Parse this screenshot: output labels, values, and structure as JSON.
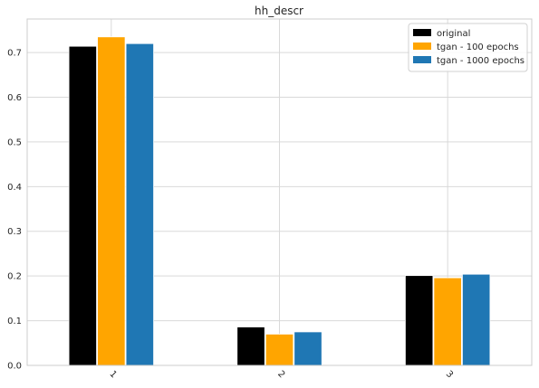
{
  "chart_data": {
    "type": "bar",
    "title": "hh_descr",
    "xlabel": "",
    "ylabel": "",
    "categories": [
      "1",
      "2",
      "3"
    ],
    "series": [
      {
        "name": "original",
        "values": [
          0.714,
          0.086,
          0.201
        ],
        "color": "#000000"
      },
      {
        "name": "tgan - 100 epochs",
        "values": [
          0.735,
          0.07,
          0.196
        ],
        "color": "#ffa500"
      },
      {
        "name": "tgan - 1000 epochs",
        "values": [
          0.72,
          0.075,
          0.204
        ],
        "color": "#1f77b4"
      }
    ],
    "ylim": [
      0,
      0.775
    ],
    "yticks": [
      0.0,
      0.1,
      0.2,
      0.3,
      0.4,
      0.5,
      0.6,
      0.7
    ],
    "ytick_labels": [
      "0.0",
      "0.1",
      "0.2",
      "0.3",
      "0.4",
      "0.5",
      "0.6",
      "0.7"
    ],
    "grid": true,
    "legend": "top-right",
    "xtick_rotation": 45
  }
}
